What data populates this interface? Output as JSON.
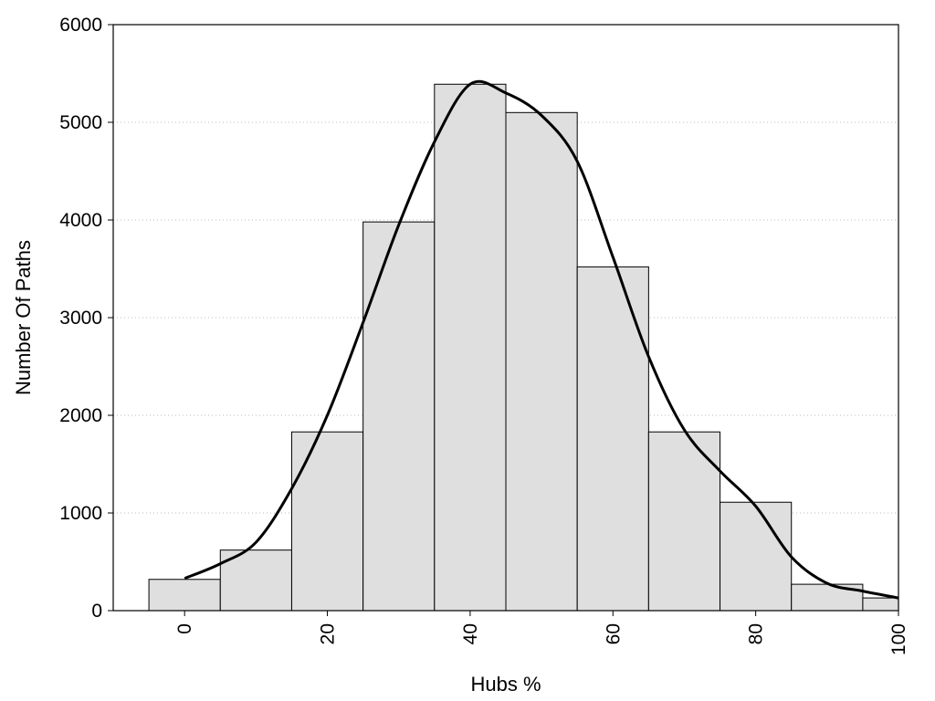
{
  "chart_data": {
    "type": "bar",
    "subtype": "histogram-with-density-curve",
    "title": "",
    "xlabel": "Hubs %",
    "ylabel": "Number Of Paths",
    "xlim": [
      -10,
      100
    ],
    "ylim": [
      0,
      6000
    ],
    "x_ticks": [
      0,
      20,
      40,
      60,
      80,
      100
    ],
    "y_ticks": [
      0,
      1000,
      2000,
      3000,
      4000,
      5000,
      6000
    ],
    "grid": "horizontal dotted",
    "legend": "none",
    "bins": [
      {
        "start": -5,
        "end": 5,
        "value": 320
      },
      {
        "start": 5,
        "end": 15,
        "value": 620
      },
      {
        "start": 15,
        "end": 25,
        "value": 1830
      },
      {
        "start": 25,
        "end": 35,
        "value": 3980
      },
      {
        "start": 35,
        "end": 45,
        "value": 5390
      },
      {
        "start": 45,
        "end": 55,
        "value": 5100
      },
      {
        "start": 55,
        "end": 65,
        "value": 3520
      },
      {
        "start": 65,
        "end": 75,
        "value": 1830
      },
      {
        "start": 75,
        "end": 85,
        "value": 1110
      },
      {
        "start": 85,
        "end": 95,
        "value": 270
      },
      {
        "start": 95,
        "end": 100,
        "value": 130
      }
    ],
    "curve": {
      "x": [
        0,
        5,
        10,
        15,
        20,
        25,
        30,
        35,
        40,
        45,
        50,
        55,
        60,
        65,
        70,
        75,
        80,
        85,
        90,
        95,
        100
      ],
      "y": [
        330,
        480,
        700,
        1250,
        2000,
        2950,
        3950,
        4800,
        5390,
        5300,
        5070,
        4600,
        3620,
        2600,
        1850,
        1430,
        1070,
        550,
        280,
        200,
        130
      ]
    },
    "colors": {
      "bar_fill": "#dfdfdf",
      "bar_stroke": "#000000",
      "curve": "#000000",
      "grid": "#bbbbbb"
    }
  }
}
